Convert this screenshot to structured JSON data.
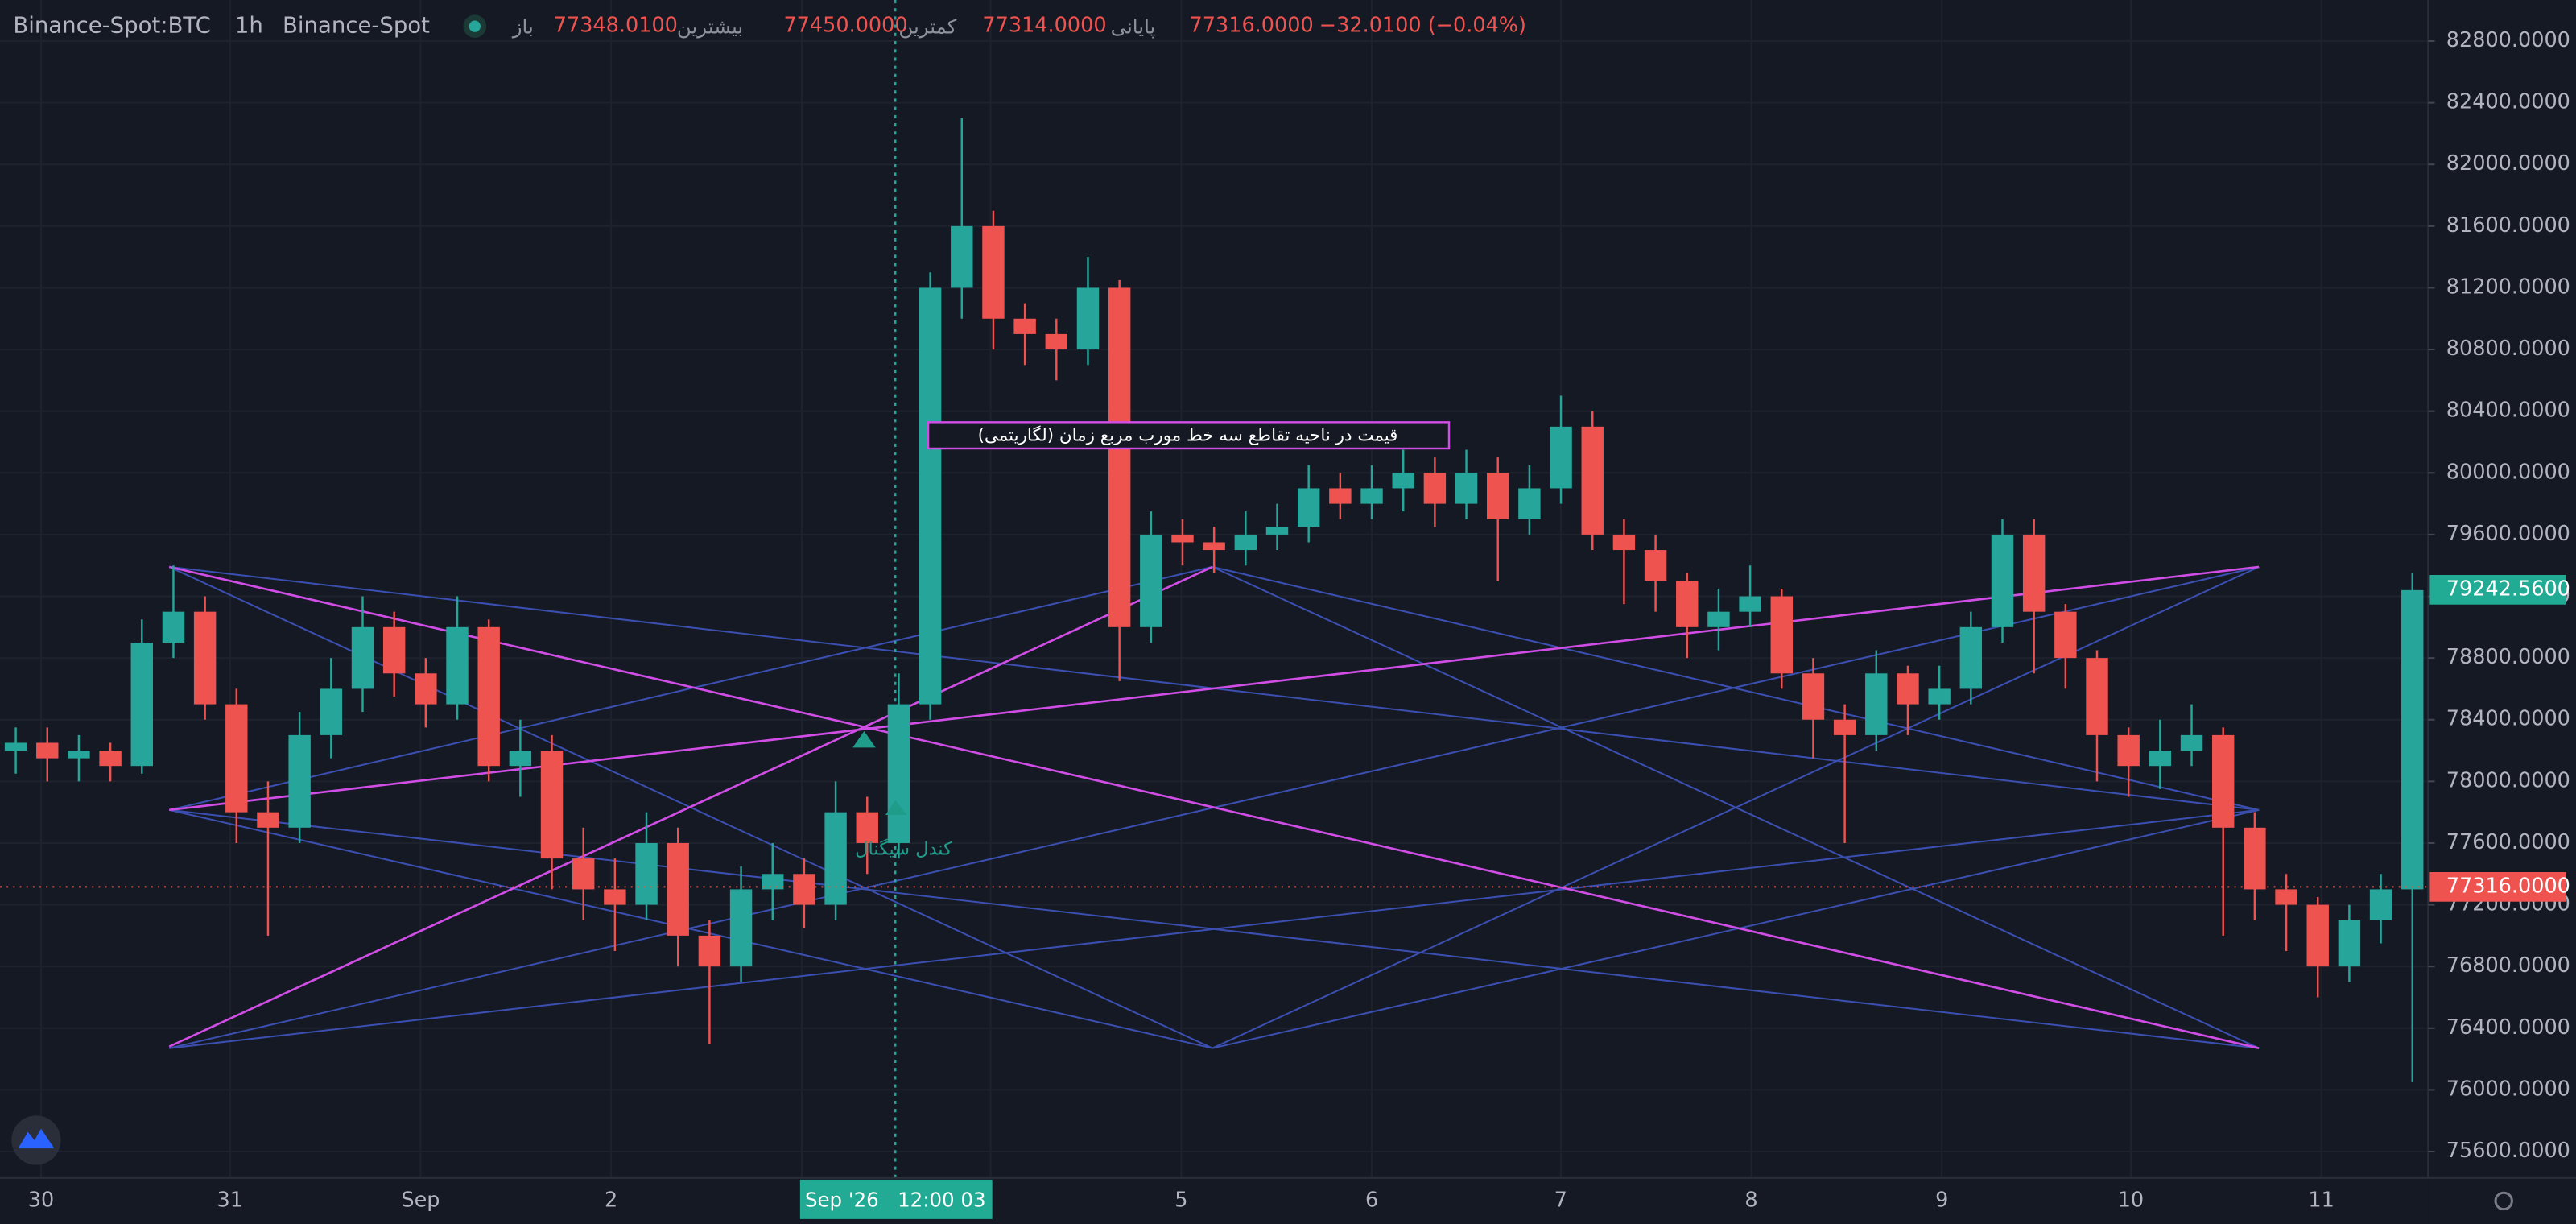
{
  "header": {
    "symbol": "Binance-Spot:BTC",
    "interval": "1h",
    "exchange": "Binance-Spot",
    "open_label": "باز",
    "open": "77348.0100",
    "high_label": "بیشترین",
    "high": "77450.0000",
    "low_label": "کمترین",
    "low": "77314.0000",
    "close_label": "پایانی",
    "close": "77316.0000",
    "change": "−32.0100 (−0.04%)"
  },
  "chart_data": {
    "type": "candlestick",
    "up_color": "#26a69a",
    "down_color": "#ef5350",
    "open": [
      78200,
      78250,
      78150,
      78200,
      78100,
      78900,
      79100,
      78500,
      77800,
      77700,
      78300,
      78600,
      79000,
      78700,
      78500,
      79000,
      78100,
      78200,
      77500,
      77300,
      77200,
      77600,
      77000,
      76800,
      77300,
      77400,
      77200,
      77800,
      77600,
      78500,
      81200,
      81600,
      81000,
      80900,
      80800,
      81200,
      79000,
      79600,
      79550,
      79500,
      79600,
      79650,
      79900,
      79800,
      79900,
      80000,
      79800,
      80000,
      79700,
      79900,
      80300,
      79600,
      79500,
      79300,
      79000,
      79100,
      79200,
      78700,
      78400,
      78300,
      78700,
      78500,
      78600,
      79000,
      79600,
      79100,
      78800,
      78300,
      78100,
      78200,
      78300,
      77700,
      77300,
      77200,
      76800,
      77100,
      77300
    ],
    "high": [
      78350,
      78350,
      78300,
      78250,
      79050,
      79400,
      79200,
      78600,
      78000,
      78450,
      78800,
      79200,
      79100,
      78800,
      79200,
      79050,
      78400,
      78300,
      77700,
      77500,
      77800,
      77700,
      77100,
      77450,
      77600,
      77500,
      78000,
      77900,
      78700,
      81300,
      82300,
      81700,
      81100,
      81000,
      81400,
      81250,
      79750,
      79700,
      79650,
      79750,
      79800,
      80050,
      80000,
      80050,
      80150,
      80100,
      80150,
      80100,
      80050,
      80500,
      80400,
      79700,
      79600,
      79350,
      79250,
      79400,
      79250,
      78800,
      78500,
      78850,
      78750,
      78750,
      79100,
      79700,
      79700,
      79150,
      78850,
      78350,
      78400,
      78500,
      78350,
      77800,
      77400,
      77250,
      77200,
      77400,
      79350
    ],
    "low": [
      78050,
      78000,
      78000,
      78000,
      78050,
      78800,
      78400,
      77600,
      77000,
      77600,
      78150,
      78450,
      78550,
      78350,
      78400,
      78000,
      77900,
      77300,
      77100,
      76900,
      77100,
      76800,
      76300,
      76700,
      77100,
      77050,
      77100,
      77400,
      77500,
      78400,
      81000,
      80800,
      80700,
      80600,
      80700,
      78650,
      78900,
      79400,
      79350,
      79400,
      79500,
      79550,
      79700,
      79700,
      79750,
      79650,
      79700,
      79300,
      79600,
      79800,
      79500,
      79150,
      79100,
      78800,
      78850,
      79000,
      78600,
      78150,
      77600,
      78200,
      78300,
      78400,
      78500,
      78900,
      78700,
      78600,
      78000,
      77900,
      77950,
      78100,
      77000,
      77100,
      76900,
      76600,
      76700,
      76950,
      76050
    ],
    "close": [
      78250,
      78150,
      78200,
      78100,
      78900,
      79100,
      78500,
      77800,
      77700,
      78300,
      78600,
      79000,
      78700,
      78500,
      79000,
      78100,
      78200,
      77500,
      77300,
      77200,
      77600,
      77000,
      76800,
      77300,
      77400,
      77200,
      77800,
      77600,
      78500,
      81200,
      81600,
      81000,
      80900,
      80800,
      81200,
      79000,
      79600,
      79550,
      79500,
      79600,
      79650,
      79900,
      79800,
      79900,
      80000,
      79800,
      80000,
      79700,
      79900,
      80300,
      79600,
      79500,
      79300,
      79000,
      79100,
      79200,
      78700,
      78400,
      78300,
      78700,
      78500,
      78600,
      79000,
      79600,
      79100,
      78800,
      78300,
      78100,
      78200,
      78300,
      77700,
      77300,
      77200,
      76800,
      77100,
      77300,
      79240
    ],
    "ylim": [
      82976,
      75420
    ],
    "yticks": [
      {
        "value": 82800,
        "label": "82800.0000"
      },
      {
        "value": 82400,
        "label": "82400.0000"
      },
      {
        "value": 82000,
        "label": "82000.0000"
      },
      {
        "value": 81600,
        "label": "81600.0000"
      },
      {
        "value": 81200,
        "label": "81200.0000"
      },
      {
        "value": 80800,
        "label": "80800.0000"
      },
      {
        "value": 80400,
        "label": "80400.0000"
      },
      {
        "value": 80000,
        "label": "80000.0000"
      },
      {
        "value": 79600,
        "label": "79600.0000"
      },
      {
        "value": 79200,
        "label": "79200.0000"
      },
      {
        "value": 78800,
        "label": "78800.0000"
      },
      {
        "value": 78400,
        "label": "78400.0000"
      },
      {
        "value": 78000,
        "label": "78000.0000"
      },
      {
        "value": 77600,
        "label": "77600.0000"
      },
      {
        "value": 77200,
        "label": "77200.0000"
      },
      {
        "value": 76800,
        "label": "76800.0000"
      },
      {
        "value": 76400,
        "label": "76400.0000"
      },
      {
        "value": 76000,
        "label": "76000.0000"
      },
      {
        "value": 75600,
        "label": "75600.0000"
      }
    ],
    "x_labels": [
      "30",
      "31",
      "Sep",
      "2",
      "5",
      "6",
      "7",
      "8",
      "9",
      "10",
      "11"
    ],
    "current_price": {
      "value": 79242.56,
      "label": "79242.5600"
    },
    "last_close": {
      "value": 77316,
      "label": "77316.0000"
    },
    "crosshair_time": "Sep '26   12:00 03",
    "annotation": "قیمت در ناحیه تقاطع سه خط مورب مربع زمان (لگاریتمی)",
    "signal_label": "کندل سیگنال",
    "grid": true
  }
}
